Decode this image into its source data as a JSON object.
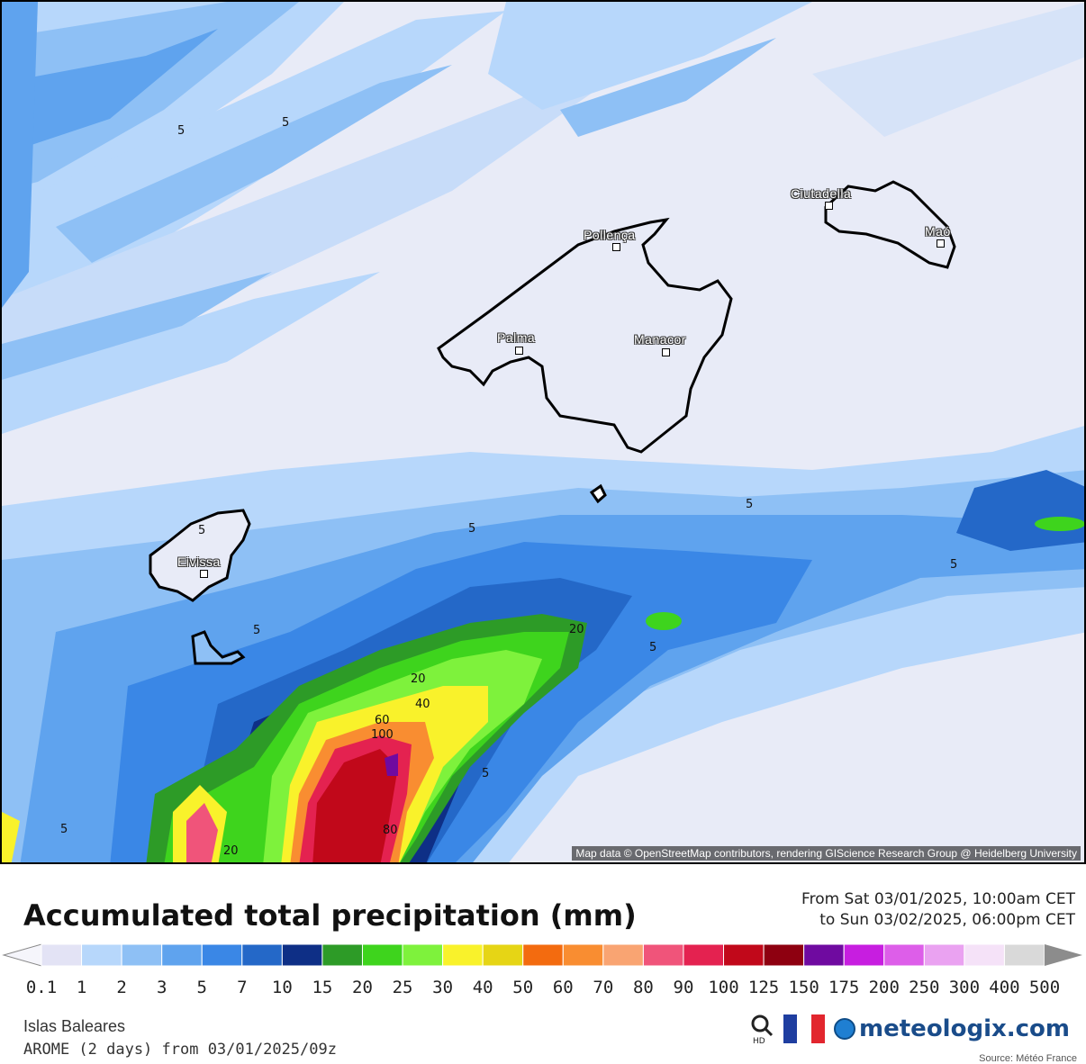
{
  "map": {
    "attribution": "Map data © OpenStreetMap contributors, rendering GIScience Research Group @ Heidelberg University",
    "cities": [
      {
        "name": "Ciutadella"
      },
      {
        "name": "Maó"
      },
      {
        "name": "Pollença"
      },
      {
        "name": "Palma"
      },
      {
        "name": "Manacor"
      },
      {
        "name": "Eivissa"
      }
    ],
    "contour_labels": [
      "5",
      "5",
      "5",
      "5",
      "5",
      "5",
      "5",
      "5",
      "5",
      "5",
      "20",
      "20",
      "40",
      "60",
      "100",
      "80",
      "20",
      "5"
    ]
  },
  "legend": {
    "title": "Accumulated total precipitation (mm)",
    "period_from": "From Sat 03/01/2025, 10:00am CET",
    "period_to": "to Sun 03/02/2025, 06:00pm CET",
    "scale_values": [
      "0.1",
      "1",
      "2",
      "3",
      "5",
      "7",
      "10",
      "15",
      "20",
      "25",
      "30",
      "40",
      "50",
      "60",
      "70",
      "80",
      "90",
      "100",
      "125",
      "150",
      "175",
      "200",
      "250",
      "300",
      "400",
      "500"
    ],
    "scale_colors": [
      "#e3e3f5",
      "#b7d7fb",
      "#8ec0f5",
      "#5fa3ee",
      "#3a87e6",
      "#2468c8",
      "#0e2f86",
      "#2d9b27",
      "#3ed41d",
      "#7ef23c",
      "#f9f22b",
      "#e6d515",
      "#f36b0f",
      "#f98d31",
      "#f9a472",
      "#f0547a",
      "#e42250",
      "#c1081a",
      "#8e0010",
      "#6f0aa0",
      "#c71ee0",
      "#dd5ee9",
      "#eaa2f1",
      "#f5e2f8",
      "#d9d9d9"
    ],
    "region": "Islas Baleares",
    "model": "AROME (2 days) from 03/01/2025/09z",
    "brand": "meteologix.com",
    "source": "Source: Météo France",
    "icons": [
      "hd-search-icon",
      "france-flag-icon",
      "meteologix-logo-icon"
    ]
  }
}
